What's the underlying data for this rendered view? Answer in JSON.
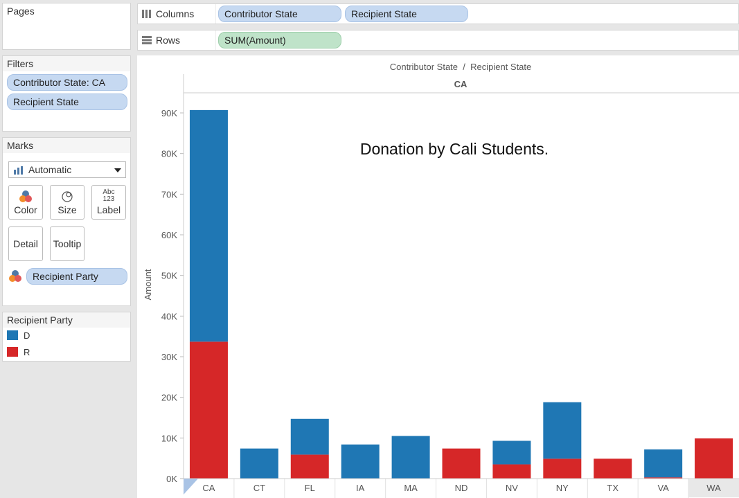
{
  "pages": {
    "title": "Pages"
  },
  "filters": {
    "title": "Filters",
    "items": [
      "Contributor State: CA",
      "Recipient State"
    ]
  },
  "marks": {
    "title": "Marks",
    "mark_type": "Automatic",
    "buttons": {
      "color": "Color",
      "size": "Size",
      "label": "Label",
      "label_icon_top": "Abc",
      "label_icon_bottom": "123",
      "detail": "Detail",
      "tooltip": "Tooltip"
    },
    "color_field": "Recipient Party"
  },
  "legend": {
    "title": "Recipient Party",
    "items": [
      {
        "label": "D",
        "color": "#1f77b4"
      },
      {
        "label": "R",
        "color": "#d62728"
      }
    ]
  },
  "shelves": {
    "columns_label": "Columns",
    "columns": [
      "Contributor State",
      "Recipient State"
    ],
    "rows_label": "Rows",
    "rows": [
      "SUM(Amount)"
    ]
  },
  "chart_data": {
    "type": "bar",
    "stacked": true,
    "header": "Contributor State  /  Recipient State",
    "pane_label": "CA",
    "annotation": "Donation by Cali Students.",
    "ylabel": "Amount",
    "ylim": [
      0,
      95000
    ],
    "yticks": [
      0,
      10000,
      20000,
      30000,
      40000,
      50000,
      60000,
      70000,
      80000,
      90000
    ],
    "ytick_labels": [
      "0K",
      "10K",
      "20K",
      "30K",
      "40K",
      "50K",
      "60K",
      "70K",
      "80K",
      "90K"
    ],
    "categories": [
      "CA",
      "CT",
      "FL",
      "IA",
      "MA",
      "ND",
      "NV",
      "NY",
      "TX",
      "VA",
      "WA"
    ],
    "series": [
      {
        "name": "R",
        "color": "#d62728",
        "values": [
          33700,
          0,
          5900,
          0,
          0,
          7400,
          3500,
          4900,
          4900,
          300,
          9900
        ]
      },
      {
        "name": "D",
        "color": "#1f77b4",
        "values": [
          57000,
          7400,
          8800,
          8400,
          10500,
          0,
          5800,
          13900,
          0,
          6900,
          0
        ]
      }
    ]
  }
}
